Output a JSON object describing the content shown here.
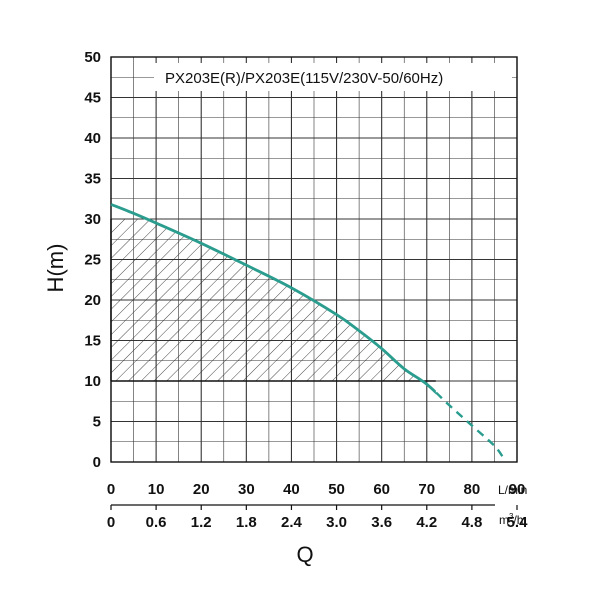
{
  "chart_data": {
    "type": "line",
    "title": "PX203E(R)/PX203E(115V/230V-50/60Hz)",
    "ylabel": "H(m)",
    "xlabel": "Q",
    "xlim": [
      0,
      90
    ],
    "ylim": [
      0,
      50
    ],
    "x_unit_primary": "L/min",
    "x_unit_secondary": {
      "base": "m",
      "sup": "3",
      "tail": "/h"
    },
    "x_ticks": [
      "0",
      "10",
      "20",
      "30",
      "40",
      "50",
      "60",
      "70",
      "80",
      "90"
    ],
    "x_ticks_secondary": [
      "0",
      "0.6",
      "1.2",
      "1.8",
      "2.4",
      "3.0",
      "3.6",
      "4.2",
      "4.8",
      "5.4"
    ],
    "y_ticks": [
      "0",
      "5",
      "10",
      "15",
      "20",
      "25",
      "30",
      "35",
      "40",
      "45",
      "50"
    ],
    "grid": true,
    "colors": {
      "curve": "#2a9d8f",
      "grid": "#333333",
      "hatch": "#333333"
    },
    "series": [
      {
        "x": [
          0,
          5,
          10,
          20,
          30,
          40,
          50,
          55,
          60,
          65,
          70,
          75,
          80,
          85,
          87
        ],
        "y": [
          31.8,
          30.7,
          29.5,
          27,
          24.3,
          21.5,
          18.2,
          16.2,
          14,
          11.5,
          9.6,
          7,
          4.5,
          2,
          0.5
        ]
      }
    ],
    "solid_range": [
      0,
      72
    ],
    "shaded_region": {
      "x_from": 0,
      "x_to": 72,
      "y_from": 10,
      "y_to": 30
    }
  }
}
